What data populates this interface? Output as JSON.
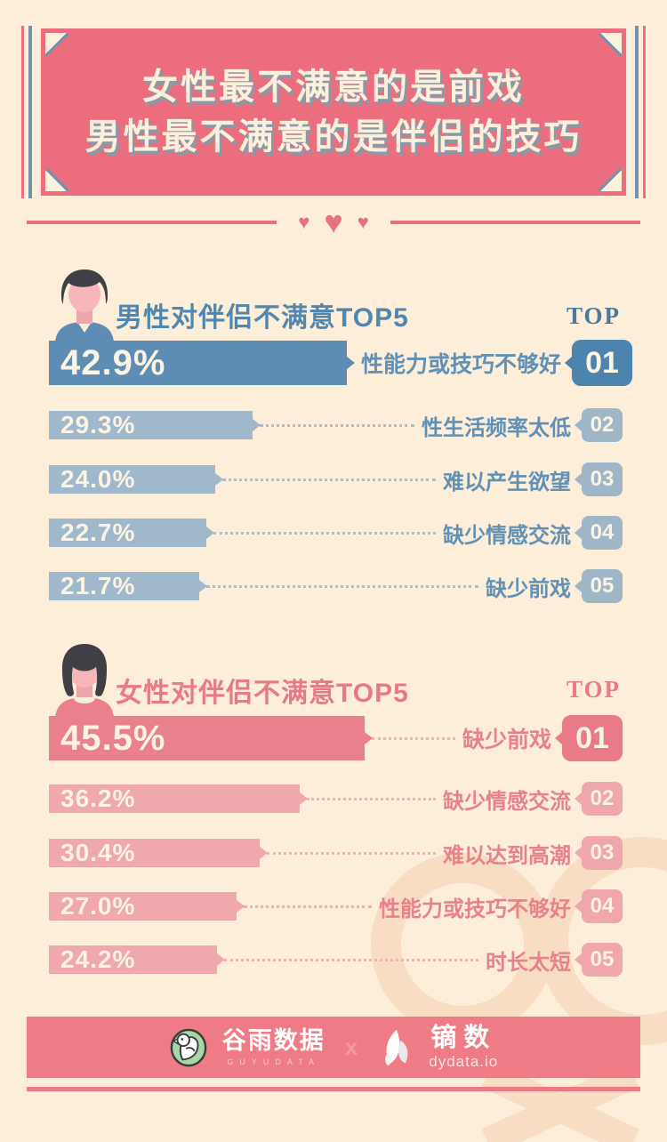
{
  "title": {
    "line1": "女性最不满意的是前戏",
    "line2": "男性最不满意的是伴侣的技巧"
  },
  "chart_data": [
    {
      "type": "bar",
      "orientation": "horizontal",
      "title": "男性对伴侣不满意TOP5",
      "top_label": "TOP",
      "categories": [
        "性能力或技巧不够好",
        "性生活频率太低",
        "难以产生欲望",
        "缺少情感交流",
        "缺少前戏"
      ],
      "values": [
        42.9,
        29.3,
        24.0,
        22.7,
        21.7
      ],
      "value_labels": [
        "42.9%",
        "29.3%",
        "24.0%",
        "22.7%",
        "21.7%"
      ],
      "ranks": [
        "01",
        "02",
        "03",
        "04",
        "05"
      ],
      "xlim": [
        0,
        50
      ],
      "colors": {
        "bar_primary": "#5d8cb4",
        "bar_secondary": "#9fb8cb",
        "badge_primary": "#4d84ae",
        "badge_secondary": "#9fb6c9",
        "label": "#6190b5",
        "heading": "#4f87b0",
        "leader": "#a8bccd"
      }
    },
    {
      "type": "bar",
      "orientation": "horizontal",
      "title": "女性对伴侣不满意TOP5",
      "top_label": "TOP",
      "categories": [
        "缺少前戏",
        "缺少情感交流",
        "难以达到高潮",
        "性能力或技巧不够好",
        "时长太短"
      ],
      "values": [
        45.5,
        36.2,
        30.4,
        27.0,
        24.2
      ],
      "value_labels": [
        "45.5%",
        "36.2%",
        "30.4%",
        "27.0%",
        "24.2%"
      ],
      "ranks": [
        "01",
        "02",
        "03",
        "04",
        "05"
      ],
      "xlim": [
        0,
        50
      ],
      "colors": {
        "bar_primary": "#e9818d",
        "bar_secondary": "#efa8ab",
        "badge_primary": "#e87b86",
        "badge_secondary": "#efa7ab",
        "label": "#e8818c",
        "heading": "#e87a87",
        "leader": "#eeb0b3"
      }
    }
  ],
  "footer": {
    "guyu_name": "谷雨数据",
    "guyu_sub": "GUYUDATA",
    "separator": "x",
    "dy_name": "镝数",
    "dy_sub": "dydata.io"
  },
  "theme": {
    "background": "#fdeeda",
    "title_bg": "#ec6e7e",
    "title_text": "#faf0dc",
    "accent_blue": "#6f93ad",
    "divider": "#e6707e",
    "footer_band": "#ee7b85",
    "watermark": "#f8dcc4",
    "hearts": "#e6707e"
  }
}
